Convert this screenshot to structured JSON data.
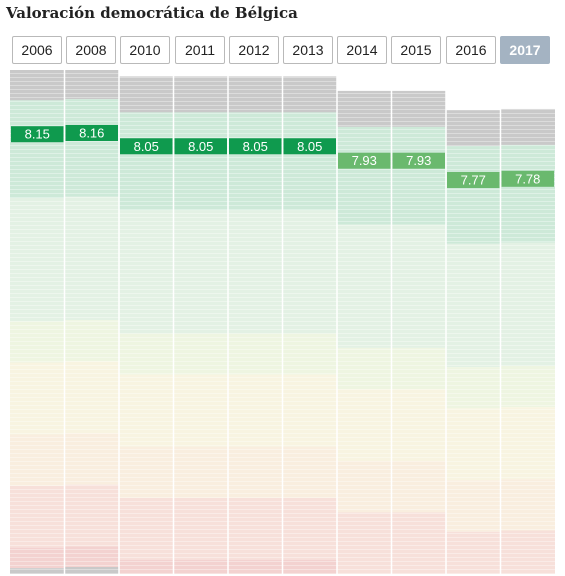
{
  "title": "Valoración democrática de Bélgica",
  "active_year": "2017",
  "colors": {
    "value_high": "#0f9a4e",
    "value_mid": "#6ab96e",
    "tab_active": "#a4b3c2",
    "band_dark_gray": "#c9c9c9",
    "band_green_strong": "#cde9d8",
    "band_green_light": "#e3f1e4",
    "band_yellow_green": "#eef5e1",
    "band_cream": "#f8f4e1",
    "band_peach": "#f9eedf",
    "band_light_red": "#f7e0da",
    "band_red": "#f3d2d0"
  },
  "chart_data": {
    "type": "bar",
    "title": "Valoración democrática de Bélgica",
    "categories": [
      "2006",
      "2008",
      "2010",
      "2011",
      "2012",
      "2013",
      "2014",
      "2015",
      "2016",
      "2017"
    ],
    "series": [
      {
        "values": [
          8.15,
          8.16,
          8.05,
          8.05,
          8.05,
          8.05,
          7.93,
          7.93,
          7.77,
          7.78
        ]
      }
    ],
    "value_labels": [
      "8.15",
      "8.16",
      "8.05",
      "8.05",
      "8.05",
      "8.05",
      "7.93",
      "7.93",
      "7.77",
      "7.78"
    ],
    "xlabel": "",
    "ylabel": "",
    "ylim": [
      0,
      10
    ],
    "grid": false,
    "legend": "none"
  }
}
